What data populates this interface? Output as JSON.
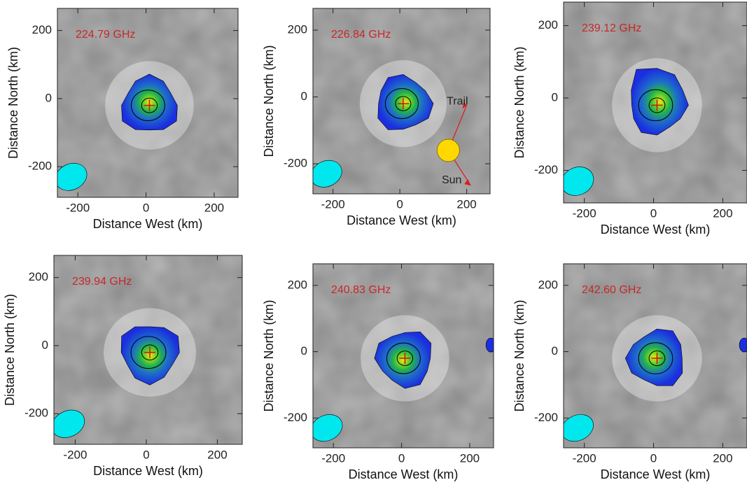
{
  "chart_data": [
    {
      "type": "image",
      "title": "224.79 GHz",
      "xlabel": "Distance West (km)",
      "ylabel": "Distance North (km)",
      "xlim": [
        -260,
        270
      ],
      "ylim": [
        -290,
        265
      ],
      "xticks": [
        -200,
        0,
        200
      ],
      "yticks": [
        -200,
        0,
        200
      ]
    },
    {
      "type": "image",
      "title": "226.84 GHz",
      "xlabel": "Distance West (km)",
      "ylabel": "Distance North (km)",
      "xlim": [
        -260,
        270
      ],
      "ylim": [
        -290,
        265
      ],
      "xticks": [
        -200,
        0,
        200
      ],
      "yticks": [
        -200,
        0,
        200
      ],
      "annotations": [
        "Trail",
        "Sun"
      ]
    },
    {
      "type": "image",
      "title": "239.12 GHz",
      "xlabel": "Distance West (km)",
      "ylabel": "Distance North (km)",
      "xlim": [
        -260,
        270
      ],
      "ylim": [
        -290,
        265
      ],
      "xticks": [
        -200,
        0,
        200
      ],
      "yticks": [
        -200,
        0,
        200
      ]
    },
    {
      "type": "image",
      "title": "239.94 GHz",
      "xlabel": "Distance West (km)",
      "ylabel": "Distance North (km)",
      "xlim": [
        -260,
        270
      ],
      "ylim": [
        -290,
        265
      ],
      "xticks": [
        -200,
        0,
        200
      ],
      "yticks": [
        -200,
        0,
        200
      ]
    },
    {
      "type": "image",
      "title": "240.83 GHz",
      "xlabel": "Distance West (km)",
      "ylabel": "Distance North (km)",
      "xlim": [
        -260,
        270
      ],
      "ylim": [
        -290,
        265
      ],
      "xticks": [
        -200,
        0,
        200
      ],
      "yticks": [
        -200,
        0,
        200
      ]
    },
    {
      "type": "image",
      "title": "242.60 GHz",
      "xlabel": "Distance West (km)",
      "ylabel": "Distance North (km)",
      "xlim": [
        -260,
        270
      ],
      "ylim": [
        -290,
        265
      ],
      "xticks": [
        -200,
        0,
        200
      ],
      "yticks": [
        -200,
        0,
        200
      ]
    }
  ]
}
